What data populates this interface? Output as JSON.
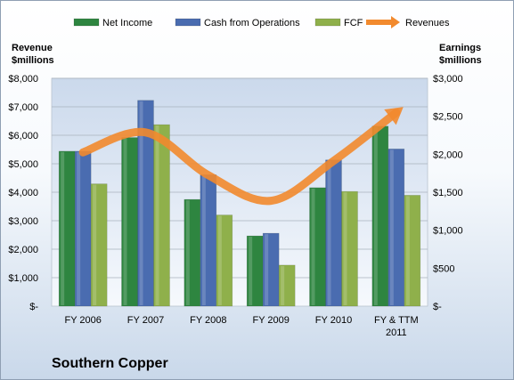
{
  "chart_data": {
    "type": "bar",
    "title": "Southern Copper",
    "left_axis_title": [
      "Revenue",
      "$millions"
    ],
    "right_axis_title": [
      "Earnings",
      "$millions"
    ],
    "categories": [
      [
        "FY 2006"
      ],
      [
        "FY 2007"
      ],
      [
        "FY 2008"
      ],
      [
        "FY 2009"
      ],
      [
        "FY 2010"
      ],
      [
        "FY & TTM",
        "2011"
      ]
    ],
    "left_axis": {
      "ylim": [
        0,
        8000
      ],
      "ticks": [
        0,
        1000,
        2000,
        3000,
        4000,
        5000,
        6000,
        7000,
        8000
      ],
      "tick_labels": [
        "$-",
        "$1,000",
        "$2,000",
        "$3,000",
        "$4,000",
        "$5,000",
        "$6,000",
        "$7,000",
        "$8,000"
      ]
    },
    "right_axis": {
      "ylim": [
        0,
        3000
      ],
      "ticks": [
        0,
        500,
        1000,
        1500,
        2000,
        2500,
        3000
      ],
      "tick_labels": [
        "$-",
        "$500",
        "$1,000",
        "$1,500",
        "$2,000",
        "$2,500",
        "$3,000"
      ]
    },
    "series": [
      {
        "name": "Net Income",
        "axis": "right",
        "color": "#2e8540",
        "values": [
          2040,
          2220,
          1405,
          925,
          1560,
          2370
        ]
      },
      {
        "name": "Cash from Operations",
        "axis": "right",
        "color": "#4a6cb0",
        "values": [
          2040,
          2710,
          1730,
          960,
          1925,
          2070
        ]
      },
      {
        "name": "FCF",
        "axis": "right",
        "color": "#8fb04b",
        "values": [
          1610,
          2390,
          1200,
          540,
          1510,
          1460
        ]
      },
      {
        "name": "Revenues",
        "axis": "left",
        "color": "#f28a2e",
        "type": "line",
        "values": [
          5400,
          6100,
          4600,
          3700,
          5100,
          6800
        ]
      }
    ],
    "grid": true,
    "legend_position": "top"
  }
}
